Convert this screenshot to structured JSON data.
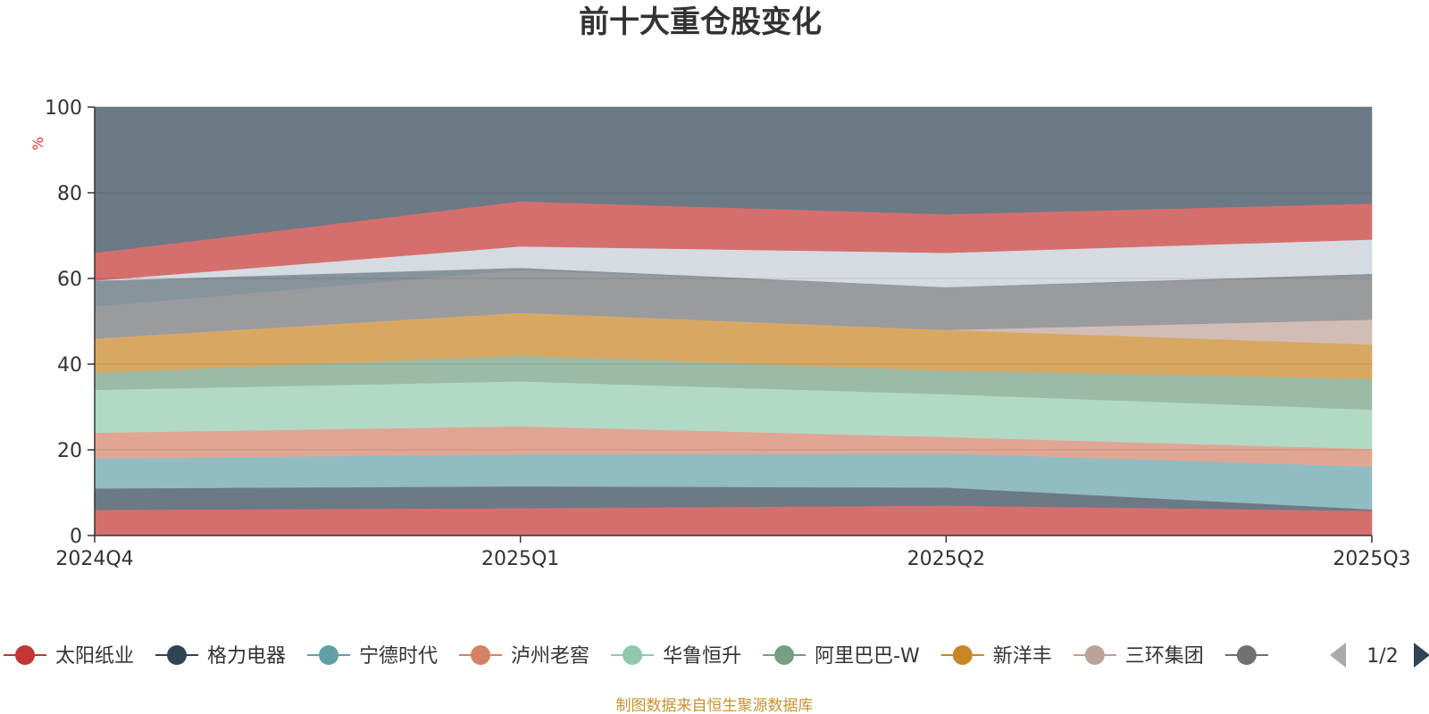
{
  "chart_data": {
    "type": "area",
    "stacked": true,
    "title": "前十大重仓股变化",
    "ylabel": "%",
    "ylim": [
      0,
      100
    ],
    "yticks": [
      0,
      20,
      40,
      60,
      80,
      100
    ],
    "categories": [
      "2024Q4",
      "2025Q1",
      "2025Q2",
      "2025Q3"
    ],
    "grid": true,
    "legend_position": "bottom",
    "legend_page": "1/2",
    "source": "制图数据来自恒生聚源数据库",
    "series": [
      {
        "name": "太阳纸业",
        "values": [
          6.0,
          6.4,
          7.0,
          5.8
        ],
        "color": "#c23531",
        "fill": "#d46f6d"
      },
      {
        "name": "格力电器",
        "values": [
          5.0,
          5.1,
          4.2,
          0.3
        ],
        "color": "#2f4554",
        "fill": "#6c7a86"
      },
      {
        "name": "宁德时代",
        "values": [
          7.0,
          7.5,
          8.0,
          10.0
        ],
        "color": "#61a0a8",
        "fill": "#91bcc2"
      },
      {
        "name": "泸州老窖",
        "values": [
          6.0,
          6.5,
          3.8,
          4.1
        ],
        "color": "#d48265",
        "fill": "#e1a693"
      },
      {
        "name": "华鲁恒升",
        "values": [
          10.0,
          10.5,
          10.0,
          9.2
        ],
        "color": "#91c7ae",
        "fill": "#b2d8c6"
      },
      {
        "name": "阿里巴巴-W",
        "values": [
          4.0,
          6.0,
          5.5,
          7.2
        ],
        "color": "#749f83",
        "fill": "#9cbba7"
      },
      {
        "name": "新洋丰",
        "values": [
          8.0,
          10.0,
          9.5,
          8.0
        ],
        "color": "#ca8622",
        "fill": "#d8a862"
      },
      {
        "name": "三环集团",
        "values": [
          0.0,
          0.0,
          0.0,
          5.8
        ],
        "color": "#bda29a",
        "fill": "#d1bcb6"
      },
      {
        "name": "",
        "values": [
          7.5,
          10.0,
          10.0,
          10.2
        ],
        "color": "#6e7074",
        "fill": "#9a9b9e"
      },
      {
        "name": "",
        "values": [
          6.0,
          0.5,
          0.0,
          0.5
        ],
        "color": "#546570",
        "fill": "#87949c"
      },
      {
        "name": "",
        "values": [
          0.0,
          5.0,
          8.0,
          8.0
        ],
        "color": "#c4ccd3",
        "fill": "#d6dbe1"
      },
      {
        "name": "",
        "values": [
          6.5,
          10.5,
          9.0,
          8.4
        ],
        "color": "#c23531",
        "fill": "#d46f6d"
      },
      {
        "name": "",
        "values": [
          34.0,
          22.0,
          25.0,
          22.5
        ],
        "color": "#2f4554",
        "fill": "#6c7a86"
      }
    ]
  }
}
